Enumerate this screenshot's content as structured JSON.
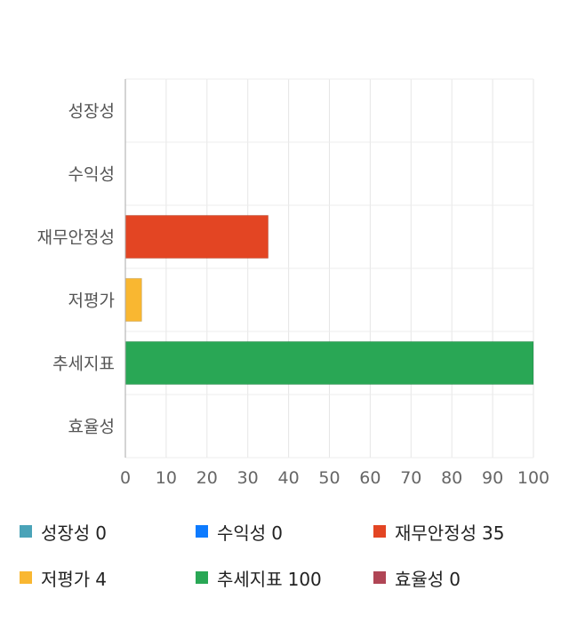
{
  "chart_data": {
    "type": "bar",
    "orientation": "horizontal",
    "categories": [
      "성장성",
      "수익성",
      "재무안정성",
      "저평가",
      "추세지표",
      "효율성"
    ],
    "values": [
      0,
      0,
      35,
      4,
      100,
      0
    ],
    "colors": [
      "#4aa3b8",
      "#0d7bff",
      "#e34523",
      "#f9b731",
      "#29a755",
      "#b04555"
    ],
    "xlim": [
      0,
      100
    ],
    "xticks": [
      0,
      10,
      20,
      30,
      40,
      50,
      60,
      70,
      80,
      90,
      100
    ],
    "grid": true,
    "legend_position": "bottom"
  },
  "legend": {
    "items": [
      {
        "name": "성장성",
        "value": "0",
        "color": "#4aa3b8"
      },
      {
        "name": "수익성",
        "value": "0",
        "color": "#0d7bff"
      },
      {
        "name": "재무안정성",
        "value": "35",
        "color": "#e34523"
      },
      {
        "name": "저평가",
        "value": "4",
        "color": "#f9b731"
      },
      {
        "name": "추세지표",
        "value": "100",
        "color": "#29a755"
      },
      {
        "name": "효율성",
        "value": "0",
        "color": "#b04555"
      }
    ]
  }
}
